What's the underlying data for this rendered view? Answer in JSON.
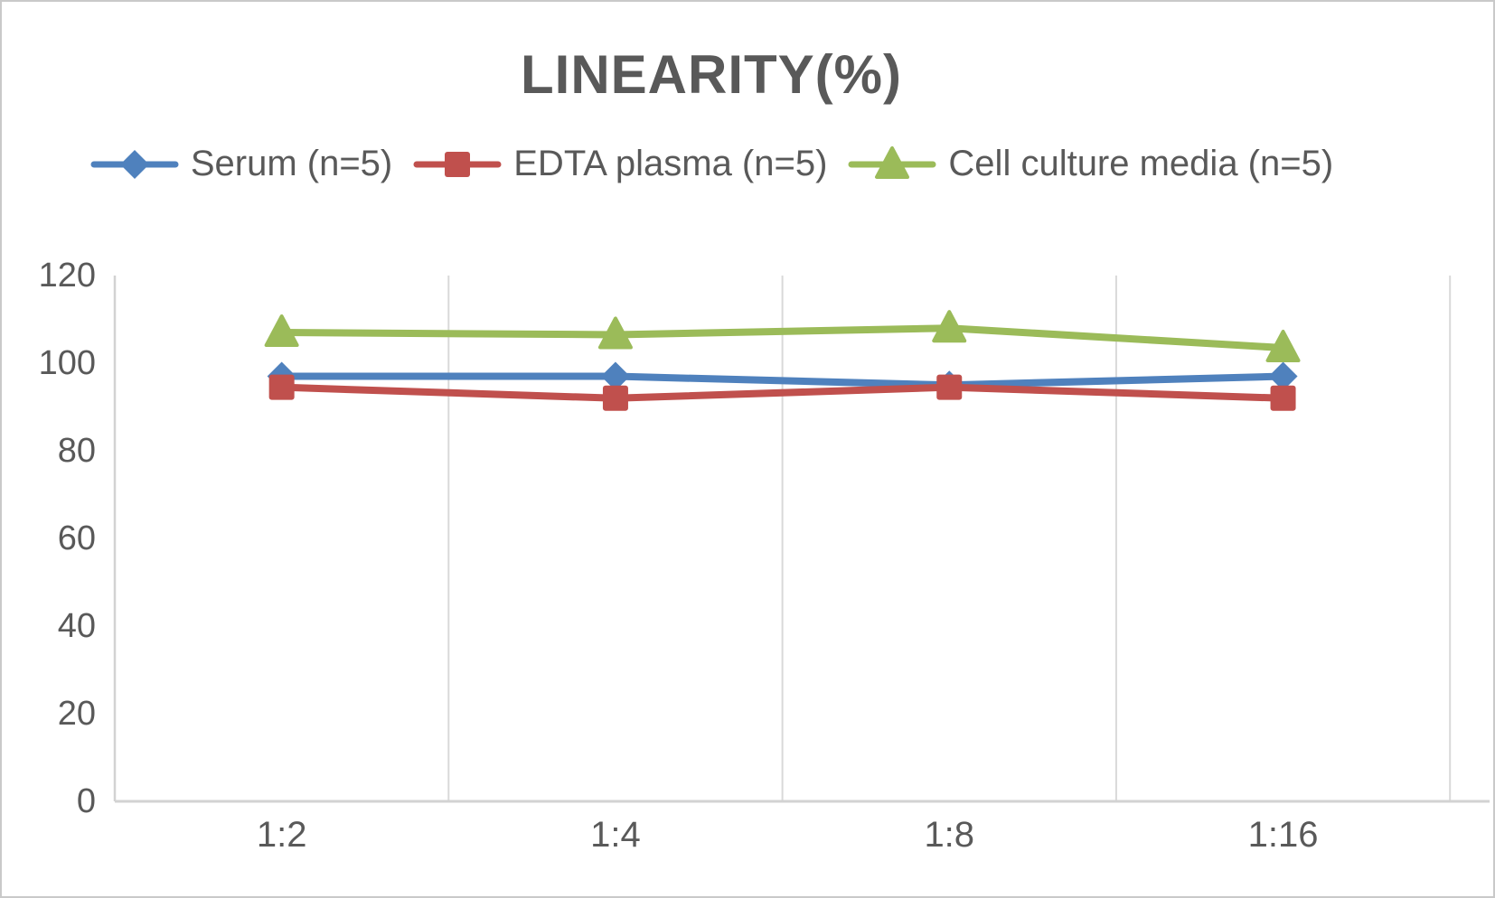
{
  "title": "LINEARITY(%)",
  "colors": {
    "title_text": "#595959",
    "axis_text": "#595959",
    "gridline": "#d9d9d9",
    "axis_line": "#d2d2d2",
    "frame_border": "#c9c9c9",
    "serum_blue": "#4F81BD",
    "edta_red": "#C0504D",
    "media_green": "#9BBB59"
  },
  "chart_data": {
    "type": "line",
    "title": "LINEARITY(%)",
    "categories": [
      "1:2",
      "1:4",
      "1:8",
      "1:16"
    ],
    "series": [
      {
        "name": "Serum (n=5)",
        "color": "#4F81BD",
        "marker": "diamond",
        "values": [
          97,
          97,
          95,
          97
        ]
      },
      {
        "name": "EDTA plasma (n=5)",
        "color": "#C0504D",
        "marker": "square",
        "values": [
          94.5,
          92,
          94.5,
          92
        ]
      },
      {
        "name": "Cell culture media (n=5)",
        "color": "#9BBB59",
        "marker": "triangle",
        "values": [
          107,
          106.5,
          108,
          103.5
        ]
      }
    ],
    "xlabel": "",
    "ylabel": "",
    "ylim": [
      0,
      120
    ],
    "yticks": [
      0,
      20,
      40,
      60,
      80,
      100,
      120
    ],
    "grid": "vertical-category-boundaries",
    "legend_position": "top"
  }
}
